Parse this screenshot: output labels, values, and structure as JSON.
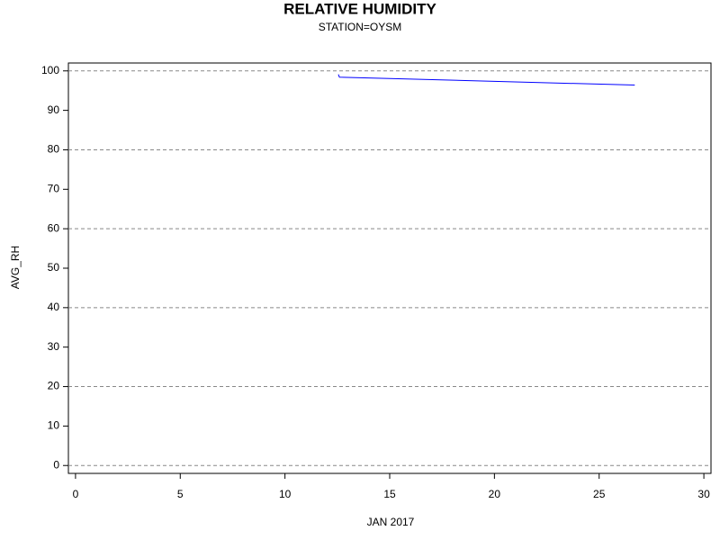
{
  "chart_data": {
    "type": "line",
    "title": "RELATIVE HUMIDITY",
    "subtitle": "STATION=OYSM",
    "x_label": "JAN 2017",
    "y_label": "AVG_RH",
    "x": [
      12.55,
      12.6,
      26.7
    ],
    "series": [
      {
        "name": "AVG_RH",
        "color": "#0000ff",
        "values": [
          99.1,
          98.4,
          96.4
        ]
      }
    ],
    "xlim": [
      -0.34,
      30.34
    ],
    "ylim": [
      -2,
      102
    ],
    "xticks": [
      0,
      5,
      10,
      15,
      20,
      25,
      30
    ],
    "yticks": [
      0,
      10,
      20,
      30,
      40,
      50,
      60,
      70,
      80,
      90,
      100
    ],
    "grid_lines": [
      0,
      20,
      40,
      60,
      80,
      100
    ],
    "grid_color": "#888888"
  }
}
